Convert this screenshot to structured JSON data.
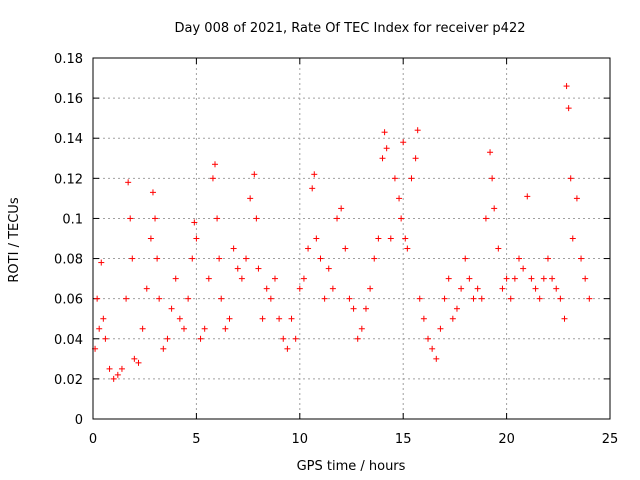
{
  "chart_data": {
    "type": "scatter",
    "title": "Day 008 of 2021, Rate Of TEC Index for receiver p422",
    "xlabel": "GPS time / hours",
    "ylabel": "ROTI / TECUs",
    "xlim": [
      0,
      25
    ],
    "ylim": [
      0,
      0.18
    ],
    "x_ticks": [
      "0",
      "5",
      "10",
      "15",
      "20",
      "25"
    ],
    "y_ticks": [
      "0",
      "0.02",
      "0.04",
      "0.06",
      "0.08",
      "0.1",
      "0.12",
      "0.14",
      "0.16",
      "0.18"
    ],
    "grid": true,
    "marker": "+",
    "color": "#ff0000",
    "series": [
      {
        "x": [
          0.1,
          0.2,
          0.3,
          0.4,
          0.5,
          0.6,
          0.8,
          1.0,
          1.2,
          1.4,
          1.6,
          1.7,
          1.8,
          1.9,
          2.0,
          2.2,
          2.4,
          2.6,
          2.8,
          2.9,
          3.0,
          3.1,
          3.2,
          3.4,
          3.6,
          3.8,
          4.0,
          4.2,
          4.4,
          4.6,
          4.8,
          4.9,
          5.0,
          5.2,
          5.4,
          5.6,
          5.8,
          5.9,
          6.0,
          6.1,
          6.2,
          6.4,
          6.6,
          6.8,
          7.0,
          7.2,
          7.4,
          7.6,
          7.8,
          7.9,
          8.0,
          8.2,
          8.4,
          8.6,
          8.8,
          9.0,
          9.2,
          9.4,
          9.6,
          9.8,
          10.0,
          10.2,
          10.4,
          10.6,
          10.7,
          10.8,
          11.0,
          11.2,
          11.4,
          11.6,
          11.8,
          12.0,
          12.2,
          12.4,
          12.6,
          12.8,
          13.0,
          13.2,
          13.4,
          13.6,
          13.8,
          14.0,
          14.1,
          14.2,
          14.4,
          14.6,
          14.8,
          14.9,
          15.0,
          15.1,
          15.2,
          15.4,
          15.6,
          15.7,
          15.8,
          16.0,
          16.2,
          16.4,
          16.6,
          16.8,
          17.0,
          17.2,
          17.4,
          17.6,
          17.8,
          18.0,
          18.2,
          18.4,
          18.6,
          18.8,
          19.0,
          19.2,
          19.3,
          19.4,
          19.6,
          19.8,
          20.0,
          20.2,
          20.4,
          20.6,
          20.8,
          21.0,
          21.2,
          21.4,
          21.6,
          21.8,
          22.0,
          22.2,
          22.4,
          22.6,
          22.8,
          22.9,
          23.0,
          23.1,
          23.2,
          23.4,
          23.6,
          23.8,
          24.0
        ],
        "y": [
          0.035,
          0.06,
          0.045,
          0.078,
          0.05,
          0.04,
          0.025,
          0.02,
          0.022,
          0.025,
          0.06,
          0.118,
          0.1,
          0.08,
          0.03,
          0.028,
          0.045,
          0.065,
          0.09,
          0.113,
          0.1,
          0.08,
          0.06,
          0.035,
          0.04,
          0.055,
          0.07,
          0.05,
          0.045,
          0.06,
          0.08,
          0.098,
          0.09,
          0.04,
          0.045,
          0.07,
          0.12,
          0.127,
          0.1,
          0.08,
          0.06,
          0.045,
          0.05,
          0.085,
          0.075,
          0.07,
          0.08,
          0.11,
          0.122,
          0.1,
          0.075,
          0.05,
          0.065,
          0.06,
          0.07,
          0.05,
          0.04,
          0.035,
          0.05,
          0.04,
          0.065,
          0.07,
          0.085,
          0.115,
          0.122,
          0.09,
          0.08,
          0.06,
          0.075,
          0.065,
          0.1,
          0.105,
          0.085,
          0.06,
          0.055,
          0.04,
          0.045,
          0.055,
          0.065,
          0.08,
          0.09,
          0.13,
          0.143,
          0.135,
          0.09,
          0.12,
          0.11,
          0.1,
          0.138,
          0.09,
          0.085,
          0.12,
          0.13,
          0.144,
          0.06,
          0.05,
          0.04,
          0.035,
          0.03,
          0.045,
          0.06,
          0.07,
          0.05,
          0.055,
          0.065,
          0.08,
          0.07,
          0.06,
          0.065,
          0.06,
          0.1,
          0.133,
          0.12,
          0.105,
          0.085,
          0.065,
          0.07,
          0.06,
          0.07,
          0.08,
          0.075,
          0.111,
          0.07,
          0.065,
          0.06,
          0.07,
          0.08,
          0.07,
          0.065,
          0.06,
          0.05,
          0.166,
          0.155,
          0.12,
          0.09,
          0.11,
          0.08,
          0.07,
          0.06
        ]
      }
    ]
  }
}
